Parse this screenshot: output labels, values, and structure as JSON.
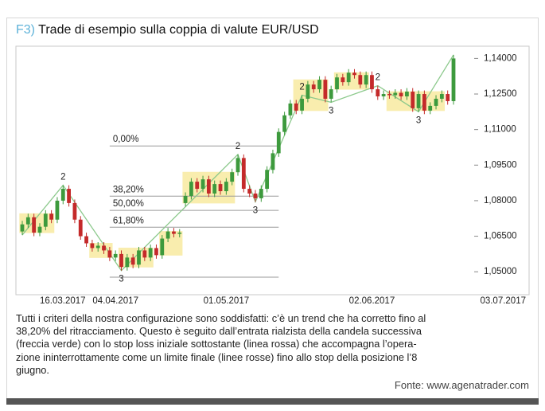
{
  "figure_label": "F3)",
  "chart_data": {
    "type": "candlestick",
    "title": "Trade di esempio sulla coppia di valute EUR/USD",
    "categories": [
      null,
      null,
      null,
      "16.03.2017",
      null,
      null,
      null,
      null,
      null,
      null,
      null,
      null,
      null,
      null,
      null,
      null,
      "04.04.2017",
      null,
      null,
      null,
      null,
      null,
      null,
      null,
      null,
      null,
      null,
      null,
      null,
      null,
      null,
      null,
      null,
      null,
      null,
      "01.05.2017",
      null,
      null,
      null,
      null,
      null,
      null,
      null,
      null,
      null,
      null,
      null,
      null,
      null,
      null,
      null,
      null,
      null,
      null,
      null,
      null,
      null,
      null,
      null,
      null,
      "02.06.2017",
      null,
      null,
      null,
      null,
      null,
      null,
      null,
      null,
      null,
      null,
      null,
      null,
      null,
      "03.07.2017"
    ],
    "open": [
      1.067,
      1.07,
      1.073,
      1.0665,
      1.069,
      1.0745,
      1.072,
      1.08,
      1.085,
      1.079,
      1.072,
      1.065,
      1.062,
      1.06,
      1.061,
      1.059,
      1.056,
      1.0575,
      1.052,
      1.056,
      1.053,
      1.059,
      1.056,
      1.06,
      1.057,
      1.064,
      1.067,
      1.066,
      1.079,
      1.082,
      1.088,
      1.085,
      1.089,
      1.083,
      1.087,
      1.084,
      1.088,
      1.092,
      1.098,
      1.085,
      1.083,
      1.081,
      1.085,
      1.093,
      1.1,
      1.109,
      1.116,
      1.121,
      1.118,
      1.123,
      1.129,
      1.127,
      1.131,
      1.123,
      1.127,
      1.132,
      1.13,
      1.134,
      1.133,
      1.129,
      1.133,
      1.127,
      1.124,
      1.125,
      1.1245,
      1.1255,
      1.124,
      1.126,
      1.119,
      1.125,
      1.118,
      1.12,
      1.123,
      1.125,
      1.122
    ],
    "high": [
      1.0715,
      1.0745,
      1.0745,
      1.0705,
      1.076,
      1.076,
      1.0815,
      1.0865,
      1.0865,
      1.0805,
      1.0735,
      1.0665,
      1.0635,
      1.0625,
      1.0625,
      1.0605,
      1.059,
      1.059,
      1.0575,
      1.0575,
      1.0605,
      1.0605,
      1.0615,
      1.0615,
      1.0655,
      1.0685,
      1.0685,
      1.068,
      1.0835,
      1.0895,
      1.0895,
      1.0905,
      1.0905,
      1.0885,
      1.0885,
      1.0895,
      1.0935,
      1.0995,
      1.0995,
      1.0865,
      1.0845,
      1.0865,
      1.0945,
      1.1015,
      1.1105,
      1.1175,
      1.1225,
      1.1225,
      1.1245,
      1.1305,
      1.1305,
      1.1325,
      1.1325,
      1.1285,
      1.1335,
      1.1335,
      1.1355,
      1.1355,
      1.1345,
      1.1345,
      1.1345,
      1.1285,
      1.1265,
      1.1265,
      1.127,
      1.127,
      1.1275,
      1.1275,
      1.1265,
      1.1265,
      1.1215,
      1.1245,
      1.1265,
      1.1265,
      1.1415
    ],
    "low": [
      1.0655,
      1.0685,
      1.065,
      1.065,
      1.0675,
      1.0705,
      1.0705,
      1.0785,
      1.0775,
      1.0705,
      1.0635,
      1.0605,
      1.0585,
      1.0585,
      1.0575,
      1.0545,
      1.0545,
      1.0505,
      1.0505,
      1.0515,
      1.0515,
      1.0545,
      1.0545,
      1.0555,
      1.0555,
      1.0625,
      1.0645,
      1.0645,
      1.0775,
      1.0805,
      1.0835,
      1.0835,
      1.0815,
      1.0815,
      1.0825,
      1.0825,
      1.0865,
      1.0905,
      1.0835,
      1.0815,
      1.0795,
      1.0795,
      1.0835,
      1.0915,
      1.0985,
      1.1075,
      1.1145,
      1.1165,
      1.1165,
      1.1215,
      1.1255,
      1.1255,
      1.1215,
      1.1215,
      1.1255,
      1.1285,
      1.1285,
      1.1315,
      1.1275,
      1.1275,
      1.1255,
      1.1225,
      1.1225,
      1.123,
      1.123,
      1.1225,
      1.1225,
      1.1175,
      1.1175,
      1.1165,
      1.1165,
      1.1185,
      1.1215,
      1.1205,
      1.1205
    ],
    "close": [
      1.07,
      1.073,
      1.0665,
      1.069,
      1.0745,
      1.072,
      1.08,
      1.085,
      1.079,
      1.072,
      1.065,
      1.062,
      1.06,
      1.061,
      1.059,
      1.056,
      1.0575,
      1.052,
      1.056,
      1.053,
      1.059,
      1.056,
      1.06,
      1.057,
      1.064,
      1.067,
      1.066,
      1.0665,
      1.082,
      1.088,
      1.085,
      1.089,
      1.083,
      1.087,
      1.084,
      1.088,
      1.092,
      1.098,
      1.085,
      1.083,
      1.081,
      1.085,
      1.093,
      1.1,
      1.109,
      1.116,
      1.121,
      1.118,
      1.123,
      1.129,
      1.127,
      1.131,
      1.123,
      1.127,
      1.132,
      1.13,
      1.134,
      1.133,
      1.129,
      1.133,
      1.127,
      1.124,
      1.125,
      1.1245,
      1.1255,
      1.124,
      1.126,
      1.119,
      1.125,
      1.118,
      1.12,
      1.123,
      1.125,
      1.122,
      1.14
    ],
    "up_color": "#3d9a3d",
    "down_color": "#c42a2a",
    "ylim": [
      1.042,
      1.1445
    ],
    "yticks": [
      {
        "value": 1.14,
        "label": "1,14000"
      },
      {
        "value": 1.125,
        "label": "1,12500"
      },
      {
        "value": 1.11,
        "label": "1,11000"
      },
      {
        "value": 1.095,
        "label": "1,09500"
      },
      {
        "value": 1.08,
        "label": "1,08000"
      },
      {
        "value": 1.065,
        "label": "1,06500"
      },
      {
        "value": 1.05,
        "label": "1,05000"
      }
    ],
    "levels": [
      {
        "value": 1.1031,
        "label": "0,00%"
      },
      {
        "value": 1.0819,
        "label": "38,20%"
      },
      {
        "value": 1.0759,
        "label": "50,00%"
      },
      {
        "value": 1.0688,
        "label": "61,80%"
      }
    ],
    "level_base": 1.0477,
    "boxes": [
      [
        0,
        5
      ],
      [
        12,
        15
      ],
      [
        17,
        22
      ],
      [
        24,
        27
      ],
      [
        28,
        36
      ],
      [
        47,
        52
      ],
      [
        54,
        59
      ],
      [
        63,
        72
      ]
    ],
    "swings": [
      0,
      7,
      17,
      37,
      40,
      48,
      53,
      61,
      68,
      74
    ],
    "wave_labels": [
      {
        "text": "2",
        "at": 7
      },
      {
        "text": "3",
        "at": 17
      },
      {
        "text": "2",
        "at": 37
      },
      {
        "text": "3",
        "at": 40
      },
      {
        "text": "2",
        "at": 48
      },
      {
        "text": "3",
        "at": 53
      },
      {
        "text": "2",
        "at": 61
      },
      {
        "text": "3",
        "at": 68
      }
    ]
  },
  "caption": [
    "Tutti i criteri della nostra configurazione sono soddisfatti: c’è un trend che ha corretto fino al",
    "38,20% del ritracciamento. Questo è seguito dall’entrata rialzista della candela successiva",
    "(freccia verde) con lo stop loss iniziale sottostante (linea rossa) che accompagna l’opera-",
    "zione ininterrottamente come un limite finale (linee rosse) fino allo stop della posizione l’8",
    "giugno."
  ],
  "source": "Fonte: www.agenatrader.com"
}
